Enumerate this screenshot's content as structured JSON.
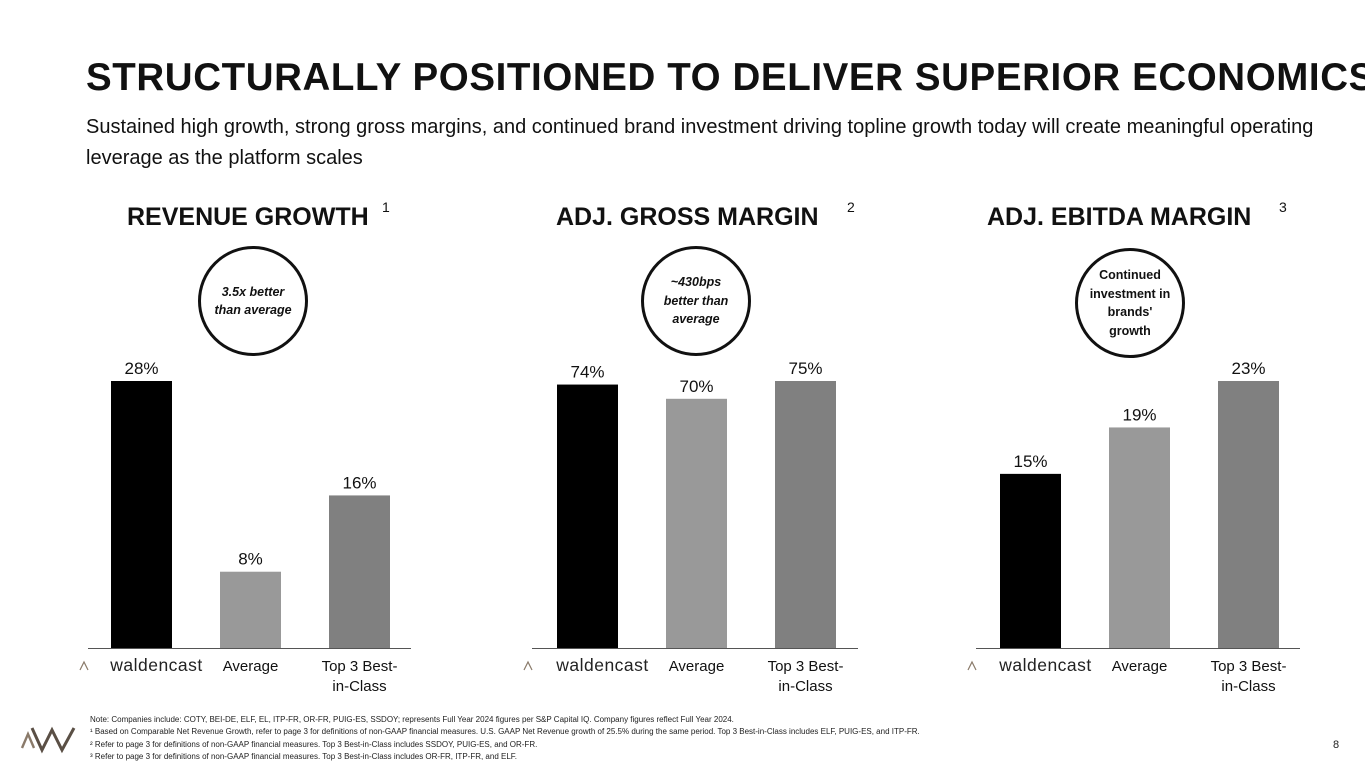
{
  "slide": {
    "title": "STRUCTURALLY POSITIONED TO DELIVER SUPERIOR ECONOMICS",
    "subtitle": "Sustained high growth, strong gross margins, and continued brand investment driving topline growth today will create meaningful operating leverage as the platform scales",
    "page_number": "8"
  },
  "panels": [
    {
      "title": "REVENUE GROWTH",
      "footnote_ref": "1",
      "callout": "3.5x better than average",
      "callout_italic": true
    },
    {
      "title": "ADJ. GROSS MARGIN",
      "footnote_ref": "2",
      "callout": "~430bps better than average",
      "callout_italic": true
    },
    {
      "title": "ADJ. EBITDA MARGIN",
      "footnote_ref": "3",
      "callout": "Continued investment in brands' growth",
      "callout_italic": false
    }
  ],
  "chart_data": [
    {
      "type": "bar",
      "title": "REVENUE GROWTH",
      "categories": [
        "waldencast",
        "Average",
        "Top 3 Best-in-Class"
      ],
      "values": [
        28,
        8,
        16
      ],
      "labels": [
        "28%",
        "8%",
        "16%"
      ],
      "ylim": [
        0,
        28
      ]
    },
    {
      "type": "bar",
      "title": "ADJ. GROSS MARGIN",
      "categories": [
        "waldencast",
        "Average",
        "Top 3 Best-in-Class"
      ],
      "values": [
        74,
        70,
        75
      ],
      "labels": [
        "74%",
        "70%",
        "75%"
      ],
      "ylim": [
        0,
        75
      ]
    },
    {
      "type": "bar",
      "title": "ADJ. EBITDA MARGIN",
      "categories": [
        "waldencast",
        "Average",
        "Top 3 Best-in-Class"
      ],
      "values": [
        15,
        19,
        23
      ],
      "labels": [
        "15%",
        "19%",
        "23%"
      ],
      "ylim": [
        0,
        23
      ]
    }
  ],
  "category_display": {
    "brand": "waldencast",
    "average": "Average",
    "top3_line1": "Top 3 Best-",
    "top3_line2": "in-Class"
  },
  "colors": {
    "waldencast": "#000000",
    "average": "#999999",
    "top3": "#808080",
    "logo_mark": "#8a7a6a"
  },
  "footnotes": [
    "Note: Companies include: COTY, BEI-DE, ELF, EL, ITP-FR, OR-FR, PUIG-ES, SSDOY; represents Full Year 2024 figures per S&P Capital IQ. Company figures reflect Full Year 2024.",
    "¹ Based on Comparable Net Revenue Growth, refer to page 3 for definitions of non-GAAP financial measures. U.S. GAAP Net Revenue growth of 25.5% during the same period. Top 3 Best-in-Class includes ELF, PUIG-ES, and ITP-FR.",
    "² Refer to page 3 for definitions of non-GAAP financial measures. Top 3 Best-in-Class includes SSDOY, PUIG-ES, and OR-FR.",
    "³ Refer to page 3 for definitions of non-GAAP financial measures. Top 3 Best-in-Class includes OR-FR, ITP-FR, and ELF."
  ],
  "icons": {
    "company_logo": "waldencast-logo-icon"
  }
}
